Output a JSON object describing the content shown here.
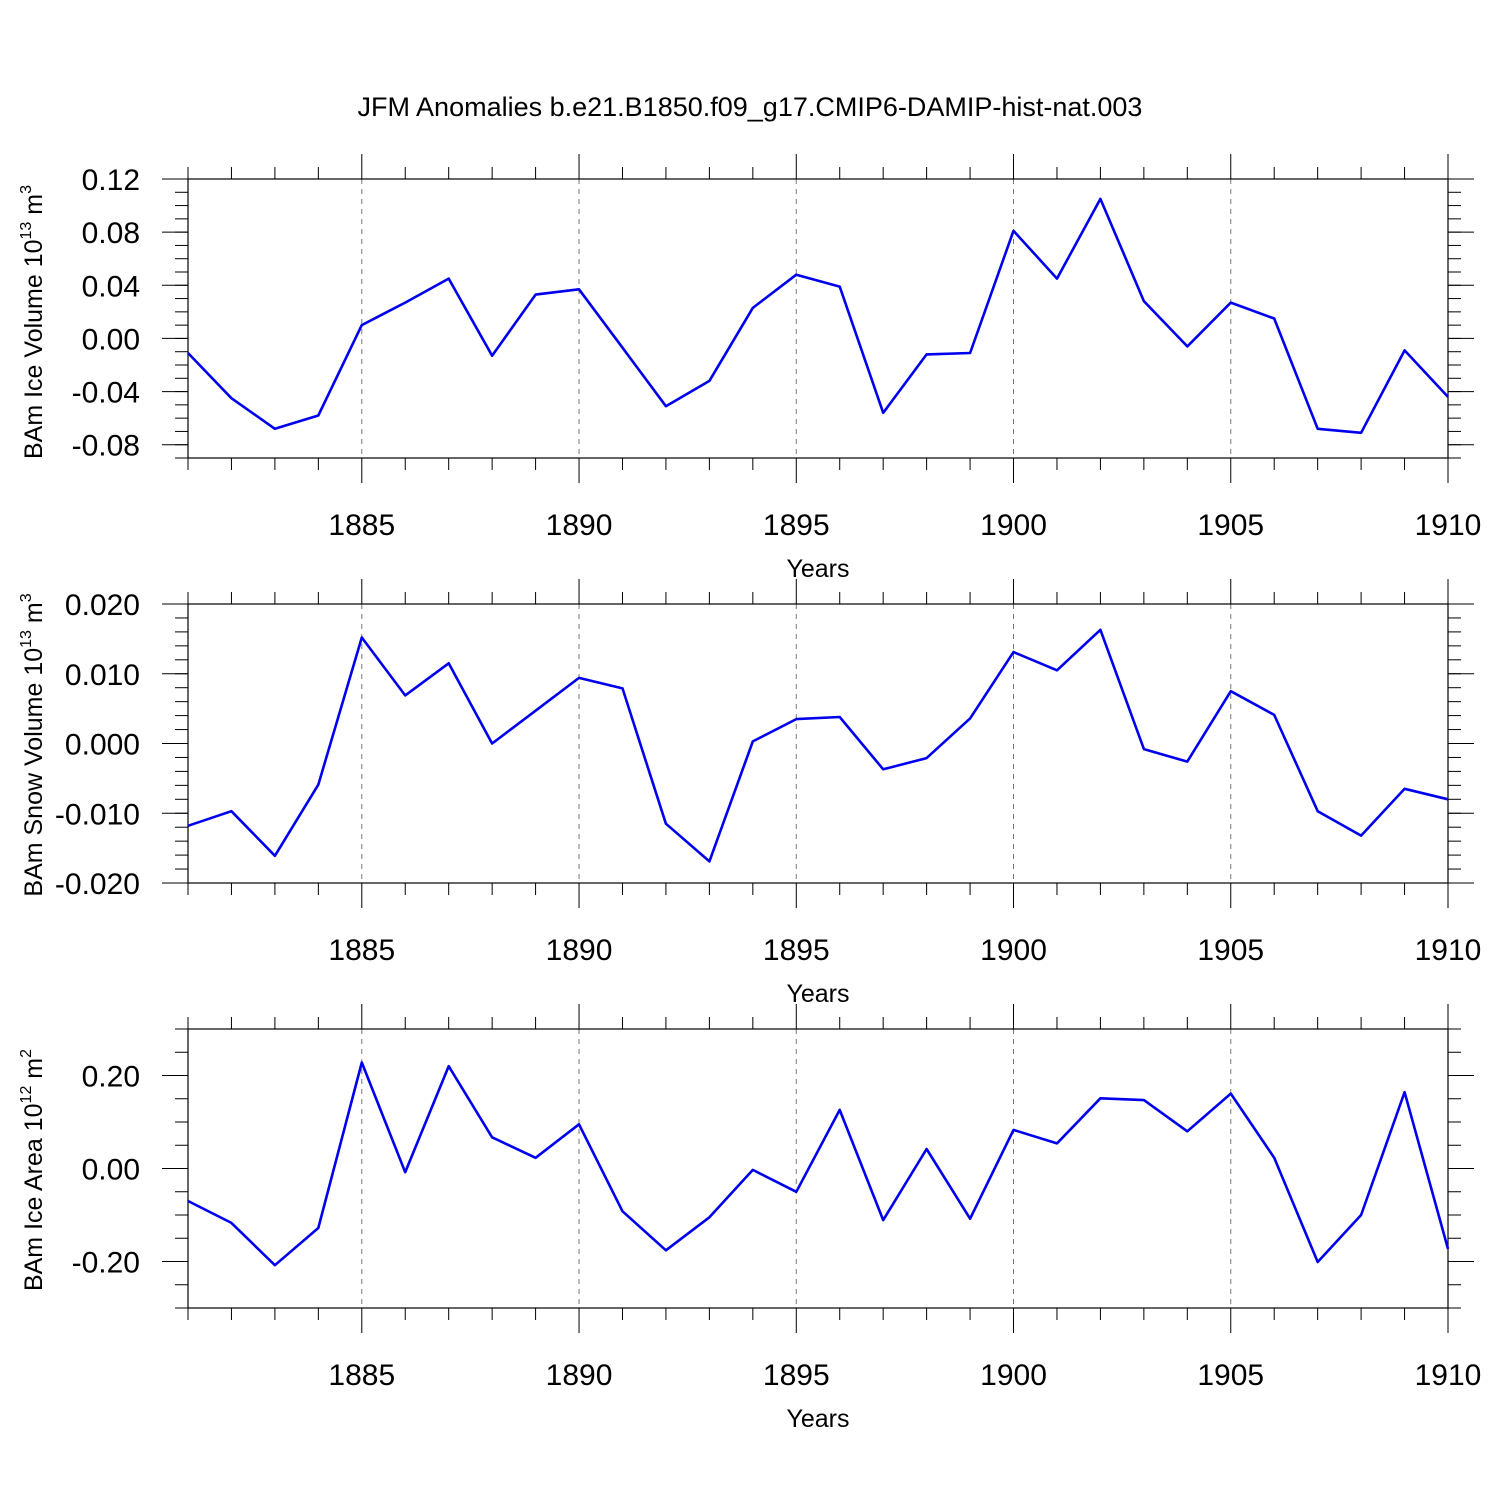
{
  "title": "JFM Anomalies b.e21.B1850.f09_g17.CMIP6-DAMIP-hist-nat.003",
  "colors": {
    "line": "#0000ee",
    "axis": "#000000",
    "grid": "#777777"
  },
  "chart_data": [
    {
      "type": "line",
      "ylabel_main": "BAm Ice Volume 10",
      "ylabel_exp": "13",
      "ylabel_unit": " m",
      "ylabel_unit_exp": "3",
      "xlabel": "Years",
      "xlim": [
        1881,
        1910
      ],
      "ylim": [
        -0.09,
        0.12
      ],
      "xticks": [
        1885,
        1890,
        1895,
        1900,
        1905,
        1910
      ],
      "xtick_labels": [
        "1885",
        "1890",
        "1895",
        "1900",
        "1905",
        "1910"
      ],
      "yticks": [
        -0.08,
        -0.04,
        0.0,
        0.04,
        0.08,
        0.12
      ],
      "ytick_labels": [
        "-0.08",
        "-0.04",
        "0.00",
        "0.04",
        "0.08",
        "0.12"
      ],
      "yminor_step": 0.01,
      "x": [
        1881,
        1882,
        1883,
        1884,
        1885,
        1886,
        1887,
        1888,
        1889,
        1890,
        1891,
        1892,
        1893,
        1894,
        1895,
        1896,
        1897,
        1898,
        1899,
        1900,
        1901,
        1902,
        1903,
        1904,
        1905,
        1906,
        1907,
        1908,
        1909,
        1910
      ],
      "values": [
        -0.011,
        -0.045,
        -0.068,
        -0.058,
        0.01,
        0.027,
        0.045,
        -0.013,
        0.033,
        0.037,
        -0.007,
        -0.051,
        -0.032,
        0.023,
        0.048,
        0.039,
        -0.056,
        -0.012,
        -0.011,
        0.081,
        0.045,
        0.105,
        0.028,
        -0.006,
        0.027,
        0.015,
        -0.068,
        -0.071,
        -0.009,
        -0.044
      ]
    },
    {
      "type": "line",
      "ylabel_main": "BAm Snow Volume 10",
      "ylabel_exp": "13",
      "ylabel_unit": " m",
      "ylabel_unit_exp": "3",
      "xlabel": "Years",
      "xlim": [
        1881,
        1910
      ],
      "ylim": [
        -0.02,
        0.02
      ],
      "xticks": [
        1885,
        1890,
        1895,
        1900,
        1905,
        1910
      ],
      "xtick_labels": [
        "1885",
        "1890",
        "1895",
        "1900",
        "1905",
        "1910"
      ],
      "yticks": [
        -0.02,
        -0.01,
        0.0,
        0.01,
        0.02
      ],
      "ytick_labels": [
        "-0.020",
        "-0.010",
        "0.000",
        "0.010",
        "0.020"
      ],
      "yminor_step": 0.002,
      "x": [
        1881,
        1882,
        1883,
        1884,
        1885,
        1886,
        1887,
        1888,
        1889,
        1890,
        1891,
        1892,
        1893,
        1894,
        1895,
        1896,
        1897,
        1898,
        1899,
        1900,
        1901,
        1902,
        1903,
        1904,
        1905,
        1906,
        1907,
        1908,
        1909,
        1910
      ],
      "values": [
        -0.0118,
        -0.0097,
        -0.0161,
        -0.0059,
        0.0152,
        0.0069,
        0.0115,
        0.0,
        0.0047,
        0.0094,
        0.0079,
        -0.0115,
        -0.0169,
        0.0003,
        0.0035,
        0.0038,
        -0.0037,
        -0.0021,
        0.0036,
        0.0131,
        0.0105,
        0.0163,
        -0.0008,
        -0.0026,
        0.0075,
        0.0041,
        -0.0097,
        -0.0132,
        -0.0065,
        -0.008
      ]
    },
    {
      "type": "line",
      "ylabel_main": "BAm Ice Area 10",
      "ylabel_exp": "12",
      "ylabel_unit": " m",
      "ylabel_unit_exp": "2",
      "xlabel": "Years",
      "xlim": [
        1881,
        1910
      ],
      "ylim": [
        -0.3,
        0.3
      ],
      "xticks": [
        1885,
        1890,
        1895,
        1900,
        1905,
        1910
      ],
      "xtick_labels": [
        "1885",
        "1890",
        "1895",
        "1900",
        "1905",
        "1910"
      ],
      "yticks": [
        -0.2,
        0.0,
        0.2
      ],
      "ytick_labels": [
        "-0.20",
        "0.00",
        "0.20"
      ],
      "yminor_step": 0.05,
      "x": [
        1881,
        1882,
        1883,
        1884,
        1885,
        1886,
        1887,
        1888,
        1889,
        1890,
        1891,
        1892,
        1893,
        1894,
        1895,
        1896,
        1897,
        1898,
        1899,
        1900,
        1901,
        1902,
        1903,
        1904,
        1905,
        1906,
        1907,
        1908,
        1909,
        1910
      ],
      "values": [
        -0.07,
        -0.117,
        -0.208,
        -0.128,
        0.228,
        -0.008,
        0.22,
        0.067,
        0.023,
        0.095,
        -0.092,
        -0.176,
        -0.105,
        -0.003,
        -0.05,
        0.126,
        -0.111,
        0.042,
        -0.108,
        0.083,
        0.054,
        0.151,
        0.147,
        0.08,
        0.161,
        0.023,
        -0.201,
        -0.1,
        0.164,
        -0.173
      ]
    }
  ]
}
